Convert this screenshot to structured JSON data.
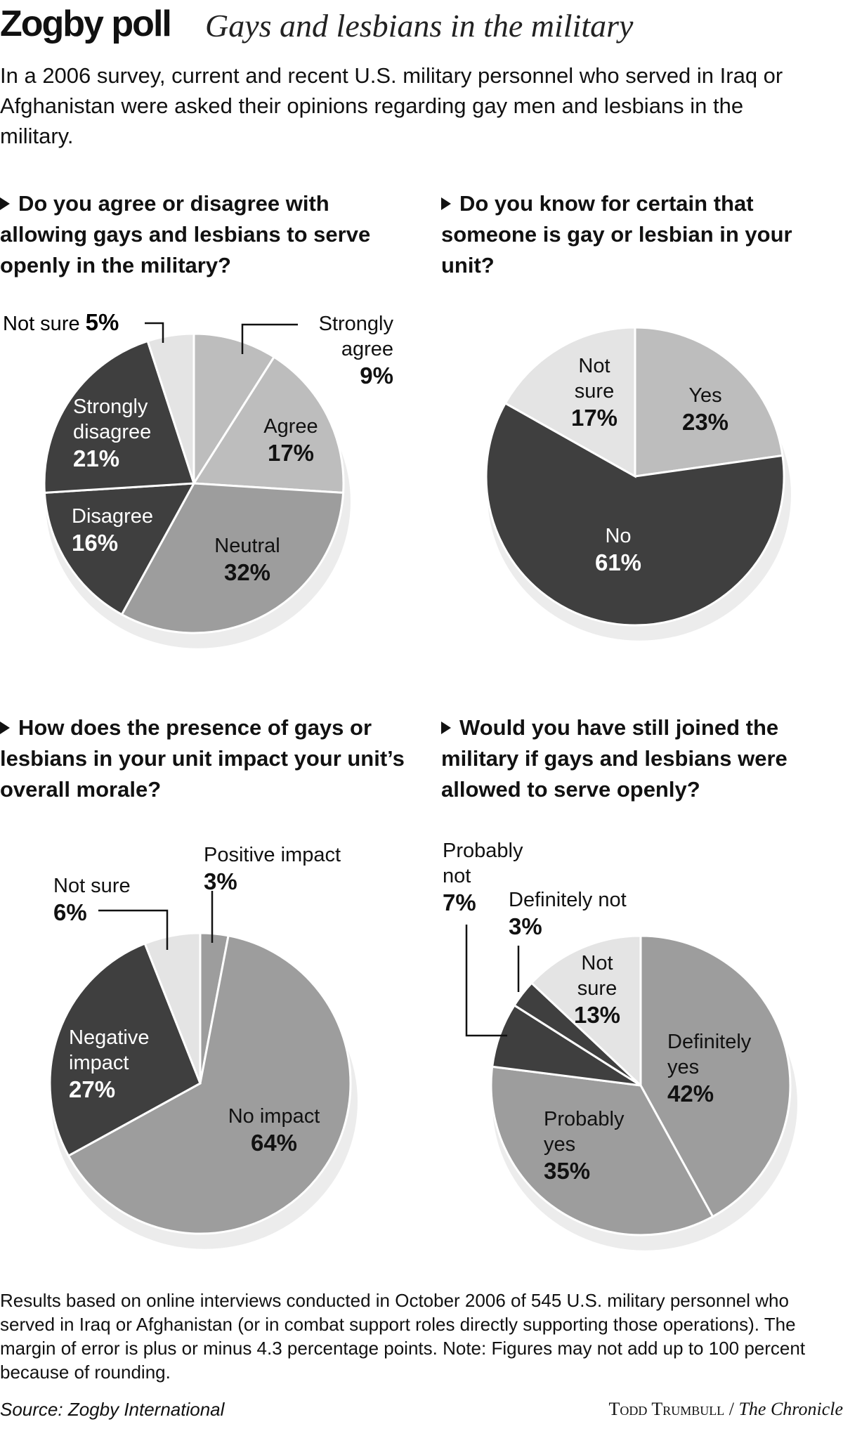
{
  "header": {
    "title": "Zogby poll",
    "subtitle": "Gays and lesbians in the military",
    "intro": "In a 2006 survey, current and recent U.S. military personnel who served in Iraq or Afghanistan were asked their opinions regarding gay men and lesbians in the military."
  },
  "colors": {
    "lightest": "#e4e4e4",
    "light": "#bdbdbd",
    "mid": "#9d9d9d",
    "dark": "#3f3f3f",
    "shadow": "#ececec"
  },
  "chart_data": [
    {
      "type": "pie",
      "title": "Do you agree or disagree with allowing gays and lesbians to serve openly in the military?",
      "categories": [
        "Strongly agree",
        "Agree",
        "Neutral",
        "Disagree",
        "Strongly disagree",
        "Not sure"
      ],
      "values": [
        9,
        17,
        32,
        16,
        21,
        5
      ],
      "labels": [
        "9%",
        "17%",
        "32%",
        "16%",
        "21%",
        "5%"
      ]
    },
    {
      "type": "pie",
      "title": "Do you know for certain that someone is gay or lesbian in your unit?",
      "categories": [
        "Yes",
        "No",
        "Not sure"
      ],
      "values": [
        23,
        61,
        17
      ],
      "labels": [
        "23%",
        "61%",
        "17%"
      ]
    },
    {
      "type": "pie",
      "title": "How does the presence of gays or lesbians in your unit impact your unit’s overall morale?",
      "categories": [
        "Positive impact",
        "No impact",
        "Negative impact",
        "Not sure"
      ],
      "values": [
        3,
        64,
        27,
        6
      ],
      "labels": [
        "3%",
        "64%",
        "27%",
        "6%"
      ]
    },
    {
      "type": "pie",
      "title": "Would you have still joined the military if gays and lesbians were allowed to serve openly?",
      "categories": [
        "Definitely yes",
        "Probably yes",
        "Probably not",
        "Definitely not",
        "Not sure"
      ],
      "values": [
        42,
        35,
        7,
        3,
        13
      ],
      "labels": [
        "42%",
        "35%",
        "7%",
        "3%",
        "13%"
      ]
    }
  ],
  "footnote": "Results based on online interviews conducted in October 2006 of 545 U.S. military personnel who served in Iraq or Afghanistan (or in combat support roles directly supporting those operations). The margin of error is plus or minus 4.3 percentage points. Note: Figures may not add up to 100 percent because of rounding.",
  "source": "Source: Zogby International",
  "credit_name": "Todd Trumbull",
  "credit_org": "The Chronicle"
}
